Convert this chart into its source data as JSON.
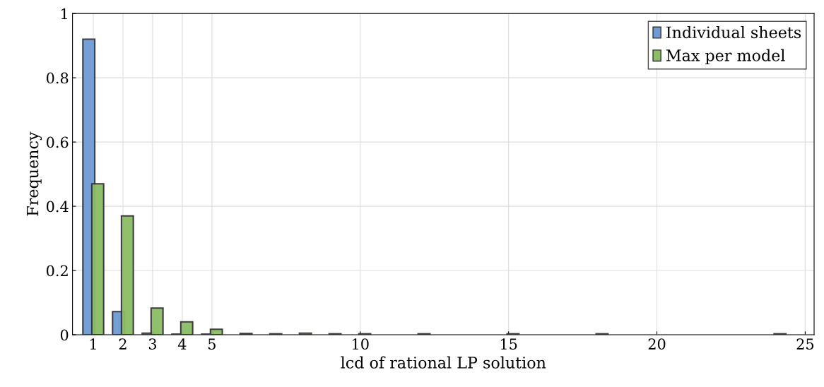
{
  "chart_data": {
    "type": "bar",
    "xlabel": "lcd of rational LP solution",
    "ylabel": "Frequency",
    "xlim": [
      0.3,
      25.3
    ],
    "xticks": [
      1,
      2,
      3,
      4,
      5,
      10,
      15,
      20,
      25
    ],
    "ylim": [
      0,
      1
    ],
    "yticks": [
      0,
      0.2,
      0.4,
      0.6,
      0.8,
      1
    ],
    "grid": true,
    "legend": "top right",
    "series": [
      {
        "name": "Individual sheets",
        "color": "#6e9bd4",
        "x": [
          1,
          2,
          3,
          4,
          5
        ],
        "values": [
          0.92,
          0.072,
          0.005,
          0.002,
          0.002
        ]
      },
      {
        "name": "Max per model",
        "color": "#8bbd64",
        "x": [
          1,
          2,
          3,
          4,
          5,
          6,
          7,
          8,
          9,
          10,
          12,
          15,
          18,
          24
        ],
        "values": [
          0.47,
          0.37,
          0.083,
          0.04,
          0.017,
          0.004,
          0.003,
          0.005,
          0.003,
          0.003,
          0.003,
          0.003,
          0.003,
          0.003
        ]
      }
    ]
  }
}
